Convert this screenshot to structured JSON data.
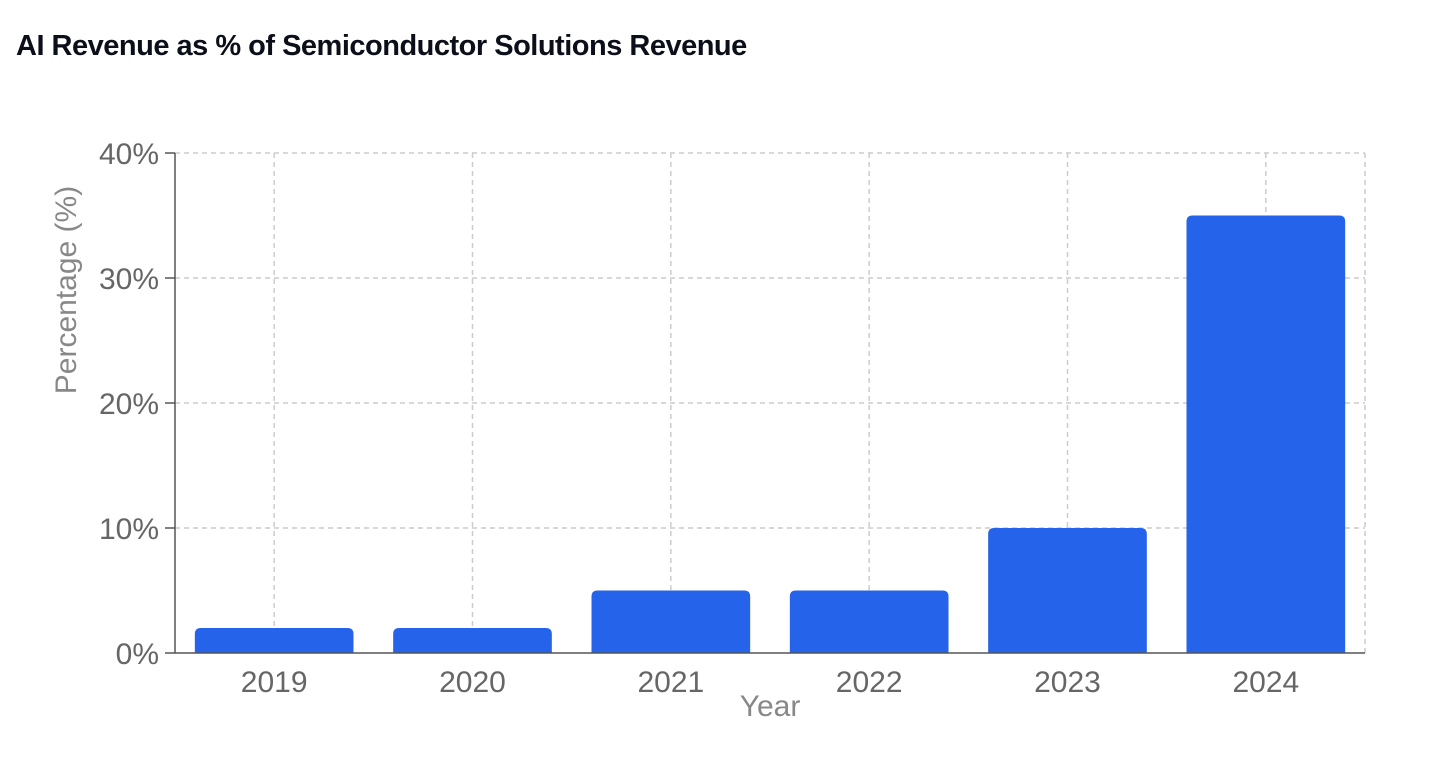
{
  "chart_data": {
    "type": "bar",
    "title": "AI Revenue as % of Semiconductor Solutions Revenue",
    "xlabel": "Year",
    "ylabel": "Percentage (%)",
    "categories": [
      "2019",
      "2020",
      "2021",
      "2022",
      "2023",
      "2024"
    ],
    "values": [
      2,
      2,
      5,
      5,
      10,
      35
    ],
    "ylim": [
      0,
      40
    ],
    "yticks": [
      0,
      10,
      20,
      30,
      40
    ],
    "ytick_suffix": "%",
    "grid": true,
    "bar_color": "#2563eb"
  }
}
